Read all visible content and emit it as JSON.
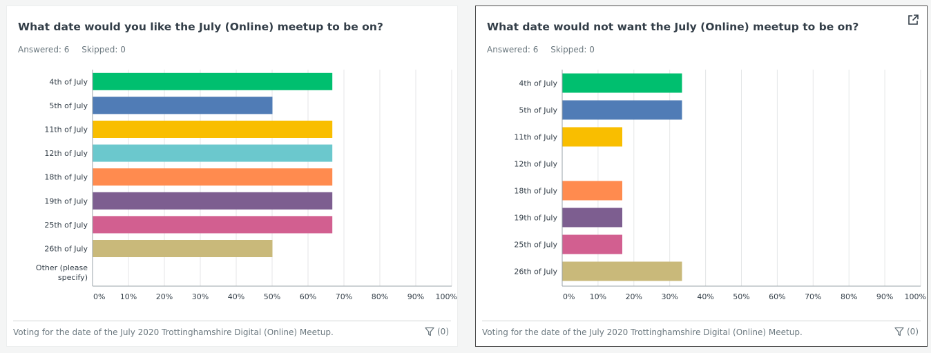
{
  "cards": [
    {
      "title": "What date would you like the July (Online) meetup to be on?",
      "answered": "Answered: 6",
      "skipped": "Skipped: 0",
      "footer": "Voting for the date of the July 2020 Trottinghamshire Digital (Online) Meetup.",
      "filter_count": "(0)"
    },
    {
      "title": "What date would not want the July (Online) meetup to be on?",
      "answered": "Answered: 6",
      "skipped": "Skipped: 0",
      "footer": "Voting for the date of the July 2020 Trottinghamshire Digital (Online) Meetup.",
      "filter_count": "(0)",
      "icon": "external-link-icon"
    }
  ],
  "chart_data": [
    {
      "type": "bar",
      "orientation": "horizontal",
      "categories": [
        "4th of July",
        "5th of July",
        "11th of July",
        "12th of July",
        "18th of July",
        "19th of July",
        "25th of July",
        "26th of July",
        "Other (please specify)"
      ],
      "values": [
        66.67,
        50,
        66.67,
        66.67,
        66.67,
        66.67,
        66.67,
        50,
        0
      ],
      "colors": [
        "#00bf6f",
        "#507cb6",
        "#f9be00",
        "#6bc8cd",
        "#ff8b4f",
        "#7d5e90",
        "#d25f90",
        "#c9b97a",
        "#cccccc"
      ],
      "x_ticks": [
        "0%",
        "10%",
        "20%",
        "30%",
        "40%",
        "50%",
        "60%",
        "70%",
        "80%",
        "90%",
        "100%"
      ],
      "xlim": [
        0,
        100
      ],
      "grid": true
    },
    {
      "type": "bar",
      "orientation": "horizontal",
      "categories": [
        "4th of July",
        "5th of July",
        "11th of July",
        "12th of July",
        "18th of July",
        "19th of July",
        "25th of July",
        "26th of July"
      ],
      "values": [
        33.33,
        33.33,
        16.67,
        0,
        16.67,
        16.67,
        16.67,
        33.33
      ],
      "colors": [
        "#00bf6f",
        "#507cb6",
        "#f9be00",
        "#6bc8cd",
        "#ff8b4f",
        "#7d5e90",
        "#d25f90",
        "#c9b97a"
      ],
      "x_ticks": [
        "0%",
        "10%",
        "20%",
        "30%",
        "40%",
        "50%",
        "60%",
        "70%",
        "80%",
        "90%",
        "100%"
      ],
      "xlim": [
        0,
        100
      ],
      "grid": true
    }
  ]
}
